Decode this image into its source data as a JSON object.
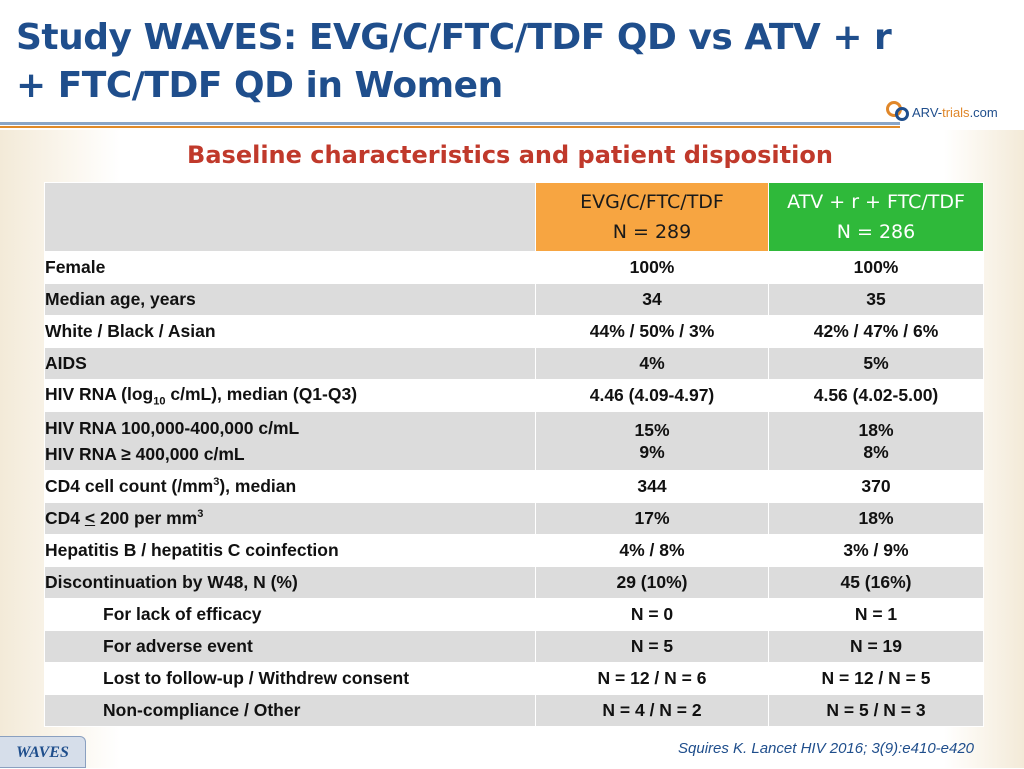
{
  "header": {
    "title": "Study WAVES: EVG/C/FTC/TDF QD vs ATV + r + FTC/TDF QD in Women",
    "logo": {
      "main": "ARV-",
      "highlight": "trials",
      "suffix": ".com"
    }
  },
  "subtitle": "Baseline characteristics and patient disposition",
  "table": {
    "columns": [
      {
        "line1": "EVG/C/FTC/TDF",
        "line2": "N = 289"
      },
      {
        "line1": "ATV + r + FTC/TDF",
        "line2": "N = 286"
      }
    ],
    "rows": [
      {
        "label": "Female",
        "evg": "100%",
        "atv": "100%"
      },
      {
        "label": "Median age, years",
        "evg": "34",
        "atv": "35"
      },
      {
        "label": "White / Black / Asian",
        "evg": "44% / 50% / 3%",
        "atv": "42% / 47% / 6%"
      },
      {
        "label": "AIDS",
        "evg": "4%",
        "atv": "5%"
      },
      {
        "label_pre": "HIV RNA (log",
        "label_sub": "10",
        "label_post": " c/mL), median (Q1-Q3)",
        "evg": "4.46 (4.09-4.97)",
        "atv": "4.56 (4.02-5.00)"
      },
      {
        "label1": "HIV RNA 100,000-400,000 c/mL",
        "label2": "HIV RNA ≥ 400,000 c/mL",
        "evg1": "15%",
        "evg2": "9%",
        "atv1": "18%",
        "atv2": "8%"
      },
      {
        "label_pre": "CD4 cell count (/mm",
        "label_sup": "3",
        "label_post": "), median",
        "evg": "344",
        "atv": "370"
      },
      {
        "label_pre": "CD4 ",
        "label_u": "<",
        "label_mid": " 200 per mm",
        "label_sup": "3",
        "evg": "17%",
        "atv": "18%"
      },
      {
        "label": "Hepatitis B / hepatitis C coinfection",
        "evg": "4% / 8%",
        "atv": "3% / 9%"
      },
      {
        "label": "Discontinuation by W48, N (%)",
        "evg": "29 (10%)",
        "atv": "45 (16%)"
      },
      {
        "label": "For lack of efficacy",
        "evg": "N = 0",
        "atv": "N = 1"
      },
      {
        "label": "For adverse event",
        "evg": "N = 5",
        "atv": "N = 19"
      },
      {
        "label": "Lost to follow-up / Withdrew consent",
        "evg": "N = 12 / N = 6",
        "atv": "N = 12 / N = 5"
      },
      {
        "label": "Non-compliance / Other",
        "evg": "N = 4 / N = 2",
        "atv": "N = 5 / N = 3"
      }
    ]
  },
  "footer": {
    "citation": "Squires K. Lancet HIV 2016; 3(9):e410-e420",
    "tag": "WAVES"
  },
  "colors": {
    "title": "#1f4e8c",
    "subtitle": "#c0392b",
    "evg_header": "#f7a541",
    "atv_header": "#2fb93a",
    "stripe": "#dcdcdc"
  }
}
